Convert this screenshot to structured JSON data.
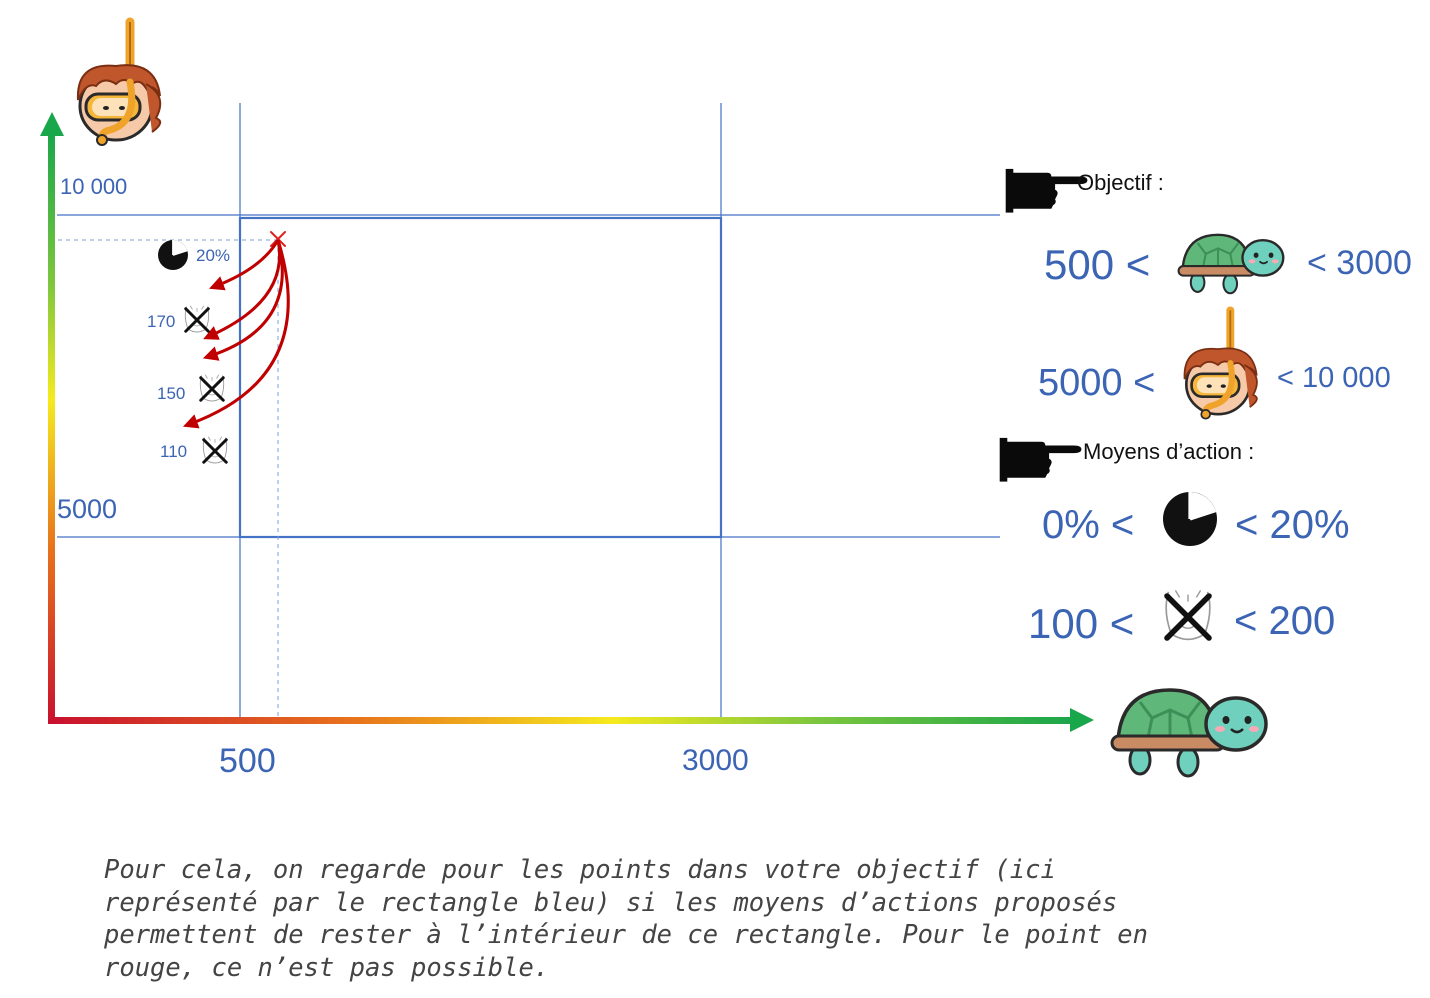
{
  "axes": {
    "y_ticks": [
      "10 000",
      "5000"
    ],
    "x_ticks": [
      "500",
      "3000"
    ],
    "y_icon": "snorkeler-icon",
    "x_icon": "turtle-icon"
  },
  "point": {
    "marker": "x",
    "color": "#e02020",
    "label_percent": "20%",
    "label_170": "170",
    "label_150": "150",
    "label_110": "110"
  },
  "legend": {
    "objective_title": "Objectif :",
    "turtle_low": "500 <",
    "turtle_high": "< 3000",
    "diver_low": "5000 <",
    "diver_high": "< 10 000",
    "actions_title": "Moyens d’action :",
    "pct_low": "0% <",
    "pct_high": "< 20%",
    "boat_low": "100 <",
    "boat_high": "< 200"
  },
  "colors": {
    "blue": "#4472c4",
    "label_blue": "#3c64b4",
    "arrow_red": "#c00000",
    "axis_green": "#1aa64a",
    "axis_red": "#c8102e"
  },
  "caption": "Pour cela, on regarde pour les points dans votre objectif (ici\nreprésenté par le rectangle bleu) si les moyens d’actions proposés\npermettent de rester à l’intérieur de ce rectangle. Pour le point en\nrouge, ce n’est pas possible."
}
